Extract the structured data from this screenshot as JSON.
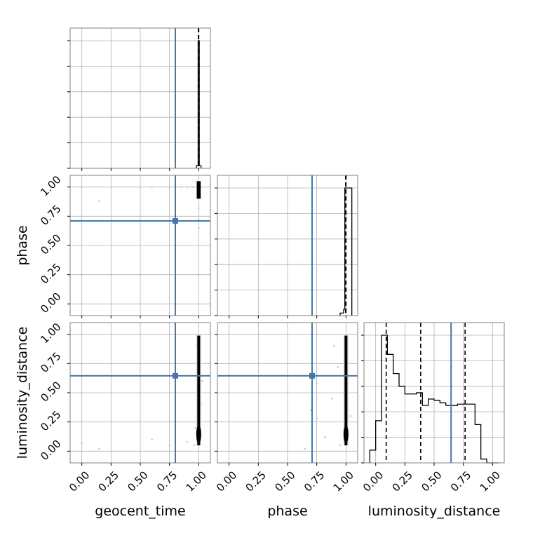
{
  "chart_data": {
    "type": "corner",
    "parameters": [
      "geocent_time",
      "phase",
      "luminosity_distance"
    ],
    "tick_labels": [
      "0.00",
      "0.25",
      "0.50",
      "0.75",
      "1.00"
    ],
    "ticks": [
      0,
      0.25,
      0.5,
      0.75,
      1.0
    ],
    "axis_range": [
      -0.1,
      1.1
    ],
    "grid": true,
    "truth_color": "#4477aa",
    "histogram_color": "#000000",
    "density_color": "#000000",
    "point_color": "#c8c8c8",
    "truths": {
      "geocent_time": 0.8,
      "phase": 0.71,
      "luminosity_distance": 0.645
    },
    "quantiles": {
      "geocent_time": [
        0.997,
        0.999,
        1.0
      ],
      "phase": [
        0.997,
        0.999,
        1.0
      ],
      "luminosity_distance": [
        0.09,
        0.385,
        0.765
      ]
    },
    "histograms": {
      "geocent_time": {
        "bins": [
          0.98,
          0.995,
          1.0,
          1.005,
          1.02
        ],
        "counts": [
          0.02,
          1.0,
          1.0,
          0.02
        ]
      },
      "phase": {
        "bins": [
          0.95,
          0.98,
          0.99,
          1.05
        ],
        "counts": [
          0.02,
          0.05,
          1.0
        ]
      },
      "luminosity_distance": {
        "bins": [
          -0.05,
          0.0,
          0.05,
          0.1,
          0.15,
          0.2,
          0.25,
          0.3,
          0.35,
          0.4,
          0.45,
          0.5,
          0.55,
          0.6,
          0.65,
          0.7,
          0.75,
          0.8,
          0.85,
          0.9,
          0.95,
          1.0,
          1.05
        ],
        "counts": [
          0.1,
          0.33,
          1.0,
          0.85,
          0.7,
          0.6,
          0.54,
          0.54,
          0.55,
          0.45,
          0.5,
          0.49,
          0.47,
          0.45,
          0.45,
          0.46,
          0.46,
          0.46,
          0.3,
          0.03,
          0.0,
          0.0
        ]
      }
    },
    "scatter": {
      "phase_vs_geocent_time": [
        [
          0.0,
          1.0
        ],
        [
          0.15,
          0.88
        ],
        [
          0.6,
          1.0
        ],
        [
          0.75,
          1.0
        ],
        [
          0.85,
          1.0
        ],
        [
          0.9,
          1.0
        ],
        [
          0.95,
          1.0
        ],
        [
          1.0,
          0.82
        ],
        [
          1.0,
          0.72
        ],
        [
          1.0,
          0.65
        ]
      ],
      "luminosity_distance_vs_geocent_time": [
        [
          0.0,
          0.07
        ],
        [
          0.15,
          0.02
        ],
        [
          0.6,
          0.1
        ],
        [
          0.75,
          0.05
        ],
        [
          0.9,
          0.08
        ],
        [
          0.98,
          0.9
        ],
        [
          1.02,
          0.4
        ],
        [
          0.97,
          0.2
        ],
        [
          1.03,
          0.6
        ],
        [
          0.96,
          0.05
        ]
      ],
      "luminosity_distance_vs_phase": [
        [
          0.75,
          0.28
        ],
        [
          0.7,
          0.35
        ],
        [
          0.75,
          0.58
        ],
        [
          0.82,
          0.12
        ],
        [
          0.88,
          0.45
        ],
        [
          0.93,
          0.72
        ],
        [
          0.95,
          0.05
        ],
        [
          0.9,
          0.9
        ],
        [
          1.04,
          0.3
        ],
        [
          0.65,
          0.02
        ]
      ]
    },
    "density": {
      "phase_vs_geocent_time": {
        "x": [
          0.995,
          1.005
        ],
        "y": [
          0.9,
          1.05
        ]
      },
      "luminosity_distance_vs_geocent_time": {
        "x": [
          0.985,
          1.015
        ],
        "y": [
          0.05,
          1.0
        ]
      },
      "luminosity_distance_vs_phase": {
        "x": [
          0.985,
          1.015
        ],
        "y": [
          0.05,
          1.0
        ]
      }
    }
  }
}
